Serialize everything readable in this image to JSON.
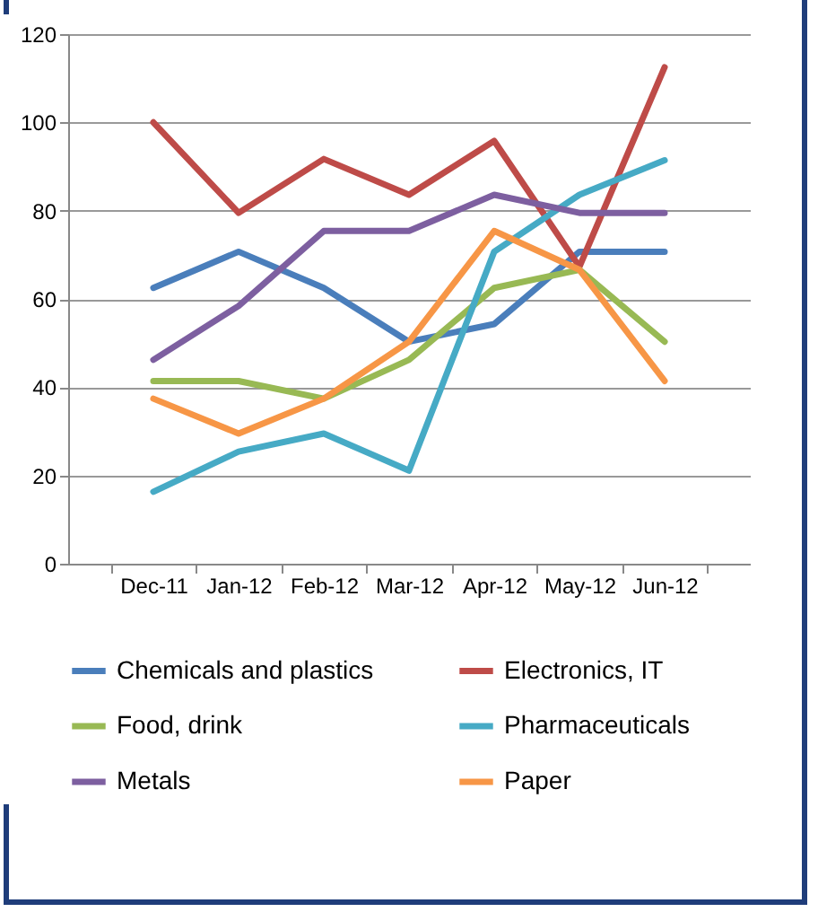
{
  "chart_data": {
    "type": "line",
    "categories": [
      "Dec-11",
      "Jan-12",
      "Feb-12",
      "Mar-12",
      "Apr-12",
      "May-12",
      "Jun-12"
    ],
    "series": [
      {
        "name": "Chemicals and plastics",
        "color": "#4a7ebb",
        "values": [
          62.5,
          70.7,
          62.5,
          50.3,
          54.3,
          70.7,
          70.7
        ]
      },
      {
        "name": "Electronics, IT",
        "color": "#be4b48",
        "values": [
          100,
          79.5,
          91.7,
          83.6,
          95.8,
          67.3,
          112.5
        ]
      },
      {
        "name": "Food, drink",
        "color": "#98b954",
        "values": [
          41.4,
          41.4,
          37.4,
          46.2,
          62.5,
          66.6,
          50.3
        ]
      },
      {
        "name": "Pharmaceuticals",
        "color": "#46aac5",
        "values": [
          16.3,
          25.4,
          29.5,
          21.1,
          70.7,
          83.6,
          91.4
        ]
      },
      {
        "name": "Metals",
        "color": "#7d5fa0",
        "values": [
          46.2,
          58.4,
          75.4,
          75.4,
          83.6,
          79.5,
          79.5
        ]
      },
      {
        "name": "Paper",
        "color": "#f79646",
        "values": [
          37.4,
          29.5,
          37.4,
          50.3,
          75.4,
          66.6,
          41.4
        ]
      }
    ],
    "ylim": [
      0,
      120
    ],
    "yticks": [
      0,
      20,
      40,
      60,
      80,
      100,
      120
    ],
    "grid": "y",
    "legend": "bottom",
    "marker": "none",
    "line_style": "solid"
  }
}
